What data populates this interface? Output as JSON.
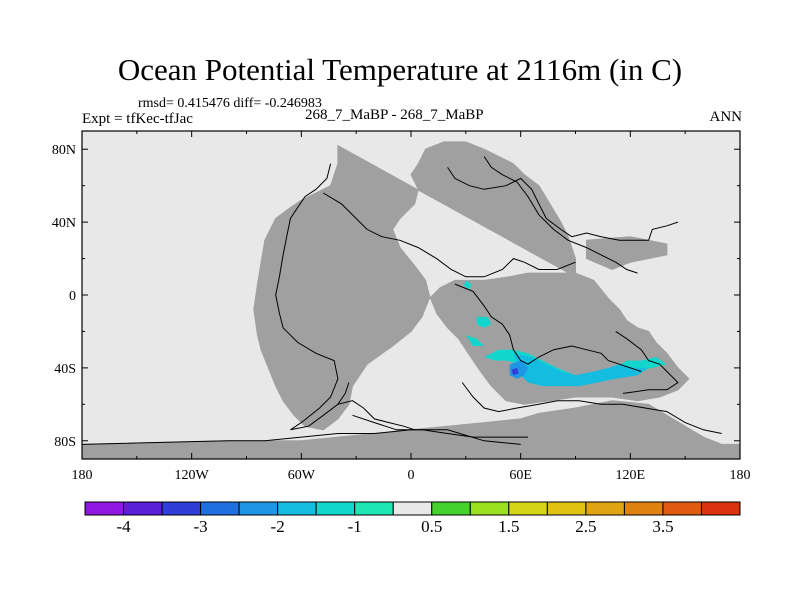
{
  "title": "Ocean Potential Temperature at 2116m (in C)",
  "stats": "rmsd= 0.415476 diff= -0.246983",
  "expt": "Expt = tfKec-tfJac",
  "case": "268_7_MaBP - 268_7_MaBP",
  "season": "ANN",
  "chart_data": {
    "type": "heatmap",
    "title": "Ocean Potential Temperature at 2116m (in C)",
    "subtitle": "268_7_MaBP - 268_7_MaBP",
    "xlim": [
      -180,
      180
    ],
    "ylim": [
      -90,
      90
    ],
    "x_ticks": [
      {
        "value": -180,
        "label": "180"
      },
      {
        "value": -120,
        "label": "120W"
      },
      {
        "value": -60,
        "label": "60W"
      },
      {
        "value": 0,
        "label": "0"
      },
      {
        "value": 60,
        "label": "60E"
      },
      {
        "value": 120,
        "label": "120E"
      },
      {
        "value": 180,
        "label": "180"
      }
    ],
    "y_ticks": [
      {
        "value": 80,
        "label": "80N"
      },
      {
        "value": 40,
        "label": "40N"
      },
      {
        "value": 0,
        "label": "0"
      },
      {
        "value": -40,
        "label": "40S"
      },
      {
        "value": -80,
        "label": "80S"
      }
    ],
    "land_color": "#a0a0a0",
    "ocean_color": "#e8e8e8",
    "colorbar": {
      "colors": [
        "#8f17e0",
        "#5a1fd8",
        "#2f3ed6",
        "#1f6fe0",
        "#1e96e6",
        "#14bde0",
        "#12d6cc",
        "#1ee6b4",
        "#e8e8e8",
        "#46d22e",
        "#9be01e",
        "#d6d618",
        "#e0c214",
        "#e0a412",
        "#e0820f",
        "#e05a0f",
        "#dc3210"
      ],
      "labels": [
        {
          "after_box": 1,
          "text": "-4"
        },
        {
          "after_box": 3,
          "text": "-3"
        },
        {
          "after_box": 5,
          "text": "-2"
        },
        {
          "after_box": 7,
          "text": "-1"
        },
        {
          "after_box": 9,
          "text": "0.5"
        },
        {
          "after_box": 11,
          "text": "1.5"
        },
        {
          "after_box": 13,
          "text": "2.5"
        },
        {
          "after_box": 15,
          "text": "3.5"
        }
      ]
    },
    "land_masses": [
      [
        [
          -180,
          -82
        ],
        [
          -180,
          -90
        ],
        [
          180,
          -90
        ],
        [
          180,
          -82
        ],
        [
          170,
          -82
        ],
        [
          160,
          -78
        ],
        [
          150,
          -72
        ],
        [
          140,
          -66
        ],
        [
          130,
          -60
        ],
        [
          110,
          -58
        ],
        [
          90,
          -62
        ],
        [
          70,
          -65
        ],
        [
          60,
          -68
        ],
        [
          40,
          -70
        ],
        [
          20,
          -72
        ],
        [
          0,
          -74
        ],
        [
          -20,
          -76
        ],
        [
          -40,
          -78
        ],
        [
          -60,
          -80
        ],
        [
          -80,
          -80
        ],
        [
          -100,
          -80
        ]
      ],
      [
        [
          -40,
          82
        ],
        [
          -40,
          72
        ],
        [
          -44,
          60
        ],
        [
          -52,
          56
        ],
        [
          -60,
          52
        ],
        [
          -66,
          48
        ],
        [
          -74,
          42
        ],
        [
          -80,
          30
        ],
        [
          -82,
          18
        ],
        [
          -84,
          6
        ],
        [
          -86,
          -8
        ],
        [
          -84,
          -22
        ],
        [
          -82,
          -30
        ],
        [
          -78,
          -40
        ],
        [
          -74,
          -50
        ],
        [
          -70,
          -58
        ],
        [
          -64,
          -66
        ],
        [
          -58,
          -72
        ],
        [
          -48,
          -74
        ],
        [
          -40,
          -68
        ],
        [
          -34,
          -60
        ],
        [
          -32,
          -50
        ],
        [
          -24,
          -38
        ],
        [
          -10,
          -28
        ],
        [
          0,
          -20
        ],
        [
          6,
          -12
        ],
        [
          10,
          -2
        ],
        [
          16,
          4
        ],
        [
          24,
          8
        ],
        [
          40,
          8
        ],
        [
          54,
          10
        ],
        [
          64,
          12
        ],
        [
          76,
          12
        ],
        [
          90,
          12
        ],
        [
          100,
          8
        ],
        [
          108,
          -2
        ],
        [
          114,
          -8
        ],
        [
          118,
          -14
        ],
        [
          124,
          -18
        ],
        [
          130,
          -20
        ],
        [
          134,
          -26
        ],
        [
          140,
          -32
        ],
        [
          146,
          -40
        ],
        [
          152,
          -46
        ],
        [
          146,
          -52
        ],
        [
          136,
          -56
        ],
        [
          124,
          -58
        ],
        [
          110,
          -56
        ],
        [
          90,
          -56
        ],
        [
          76,
          -58
        ],
        [
          62,
          -60
        ],
        [
          52,
          -58
        ],
        [
          44,
          -50
        ],
        [
          38,
          -42
        ],
        [
          34,
          -36
        ],
        [
          26,
          -24
        ],
        [
          20,
          -18
        ],
        [
          14,
          -10
        ],
        [
          10,
          0
        ],
        [
          8,
          8
        ],
        [
          2,
          16
        ],
        [
          -6,
          26
        ],
        [
          -10,
          36
        ],
        [
          -6,
          42
        ],
        [
          2,
          50
        ],
        [
          4,
          58
        ],
        [
          0,
          66
        ],
        [
          4,
          72
        ],
        [
          8,
          80
        ],
        [
          18,
          84
        ],
        [
          30,
          84
        ],
        [
          40,
          80
        ],
        [
          48,
          76
        ],
        [
          56,
          72
        ],
        [
          62,
          66
        ],
        [
          70,
          60
        ],
        [
          76,
          50
        ],
        [
          82,
          40
        ],
        [
          86,
          32
        ],
        [
          90,
          20
        ],
        [
          90,
          10
        ]
      ],
      [
        [
          96,
          30
        ],
        [
          120,
          32
        ],
        [
          140,
          28
        ],
        [
          140,
          22
        ],
        [
          120,
          18
        ],
        [
          110,
          14
        ],
        [
          96,
          20
        ]
      ]
    ],
    "coastlines": [
      [
        [
          -180,
          -82
        ],
        [
          -100,
          -80
        ],
        [
          -80,
          -80
        ],
        [
          -60,
          -78
        ],
        [
          -40,
          -76
        ],
        [
          -20,
          -76
        ],
        [
          0,
          -74
        ],
        [
          20,
          -74
        ],
        [
          40,
          -80
        ],
        [
          60,
          -82
        ]
      ],
      [
        [
          -44,
          72
        ],
        [
          -46,
          64
        ],
        [
          -52,
          58
        ],
        [
          -58,
          54
        ],
        [
          -62,
          48
        ],
        [
          -66,
          42
        ],
        [
          -68,
          32
        ],
        [
          -70,
          22
        ],
        [
          -72,
          10
        ],
        [
          -74,
          0
        ],
        [
          -72,
          -10
        ],
        [
          -70,
          -18
        ],
        [
          -62,
          -26
        ],
        [
          -52,
          -32
        ],
        [
          -42,
          -36
        ],
        [
          -40,
          -46
        ],
        [
          -44,
          -56
        ],
        [
          -50,
          -62
        ],
        [
          -60,
          -70
        ],
        [
          -66,
          -74
        ],
        [
          -56,
          -72
        ],
        [
          -48,
          -66
        ],
        [
          -40,
          -60
        ],
        [
          -36,
          -54
        ],
        [
          -34,
          -48
        ]
      ],
      [
        [
          -48,
          56
        ],
        [
          -38,
          50
        ],
        [
          -30,
          42
        ],
        [
          -24,
          36
        ],
        [
          -16,
          32
        ],
        [
          -6,
          30
        ],
        [
          4,
          26
        ],
        [
          14,
          20
        ],
        [
          22,
          14
        ],
        [
          30,
          10
        ],
        [
          40,
          10
        ],
        [
          50,
          14
        ],
        [
          56,
          20
        ],
        [
          62,
          18
        ],
        [
          70,
          14
        ],
        [
          80,
          14
        ],
        [
          90,
          18
        ]
      ],
      [
        [
          20,
          70
        ],
        [
          24,
          64
        ],
        [
          32,
          60
        ],
        [
          40,
          58
        ],
        [
          52,
          60
        ],
        [
          60,
          64
        ],
        [
          66,
          58
        ],
        [
          70,
          50
        ],
        [
          74,
          42
        ],
        [
          82,
          36
        ],
        [
          88,
          32
        ],
        [
          96,
          34
        ],
        [
          104,
          32
        ],
        [
          114,
          30
        ],
        [
          130,
          30
        ],
        [
          132,
          36
        ],
        [
          140,
          38
        ],
        [
          146,
          40
        ]
      ],
      [
        [
          40,
          76
        ],
        [
          44,
          70
        ],
        [
          50,
          66
        ],
        [
          58,
          62
        ],
        [
          64,
          54
        ],
        [
          70,
          44
        ],
        [
          78,
          36
        ],
        [
          86,
          30
        ],
        [
          96,
          26
        ],
        [
          104,
          22
        ],
        [
          112,
          18
        ],
        [
          118,
          14
        ],
        [
          124,
          12
        ]
      ],
      [
        [
          24,
          6
        ],
        [
          34,
          2
        ],
        [
          40,
          -6
        ],
        [
          44,
          -12
        ],
        [
          50,
          -16
        ],
        [
          54,
          -22
        ],
        [
          56,
          -30
        ],
        [
          60,
          -36
        ],
        [
          64,
          -38
        ],
        [
          70,
          -34
        ],
        [
          78,
          -30
        ],
        [
          88,
          -28
        ],
        [
          96,
          -30
        ],
        [
          104,
          -32
        ],
        [
          108,
          -36
        ],
        [
          114,
          -38
        ],
        [
          120,
          -40
        ],
        [
          126,
          -42
        ]
      ],
      [
        [
          -32,
          -66
        ],
        [
          -20,
          -70
        ],
        [
          -8,
          -74
        ],
        [
          6,
          -74
        ],
        [
          20,
          -76
        ],
        [
          34,
          -78
        ],
        [
          50,
          -78
        ],
        [
          64,
          -78
        ]
      ],
      [
        [
          -40,
          -60
        ],
        [
          -32,
          -58
        ],
        [
          -26,
          -62
        ],
        [
          -20,
          -68
        ],
        [
          -12,
          -70
        ],
        [
          -4,
          -72
        ],
        [
          2,
          -74
        ]
      ],
      [
        [
          112,
          -20
        ],
        [
          118,
          -24
        ],
        [
          126,
          -30
        ],
        [
          130,
          -36
        ],
        [
          136,
          -38
        ],
        [
          140,
          -42
        ],
        [
          146,
          -48
        ],
        [
          140,
          -52
        ],
        [
          130,
          -52
        ],
        [
          116,
          -54
        ]
      ],
      [
        [
          28,
          -48
        ],
        [
          34,
          -56
        ],
        [
          40,
          -62
        ],
        [
          48,
          -64
        ],
        [
          58,
          -62
        ],
        [
          70,
          -60
        ],
        [
          80,
          -58
        ],
        [
          92,
          -58
        ],
        [
          104,
          -60
        ],
        [
          116,
          -60
        ],
        [
          128,
          -62
        ],
        [
          140,
          -64
        ],
        [
          150,
          -70
        ],
        [
          160,
          -74
        ],
        [
          170,
          -76
        ]
      ]
    ],
    "anomaly_regions": [
      {
        "value": -1,
        "color": "#12d6cc",
        "polygon": [
          [
            40,
            -34
          ],
          [
            48,
            -30
          ],
          [
            56,
            -30
          ],
          [
            64,
            -32
          ],
          [
            72,
            -36
          ],
          [
            80,
            -40
          ],
          [
            90,
            -44
          ],
          [
            98,
            -44
          ],
          [
            104,
            -42
          ],
          [
            112,
            -40
          ],
          [
            118,
            -36
          ],
          [
            126,
            -36
          ],
          [
            134,
            -34
          ],
          [
            140,
            -38
          ],
          [
            132,
            -40
          ],
          [
            122,
            -42
          ],
          [
            110,
            -42
          ],
          [
            100,
            -46
          ],
          [
            90,
            -48
          ],
          [
            80,
            -46
          ],
          [
            70,
            -42
          ],
          [
            60,
            -38
          ],
          [
            52,
            -36
          ],
          [
            46,
            -36
          ]
        ]
      },
      {
        "value": -1.5,
        "color": "#14bde0",
        "polygon": [
          [
            56,
            -32
          ],
          [
            66,
            -34
          ],
          [
            74,
            -38
          ],
          [
            82,
            -42
          ],
          [
            90,
            -44
          ],
          [
            100,
            -42
          ],
          [
            108,
            -40
          ],
          [
            114,
            -38
          ],
          [
            122,
            -40
          ],
          [
            130,
            -40
          ],
          [
            124,
            -44
          ],
          [
            112,
            -46
          ],
          [
            102,
            -48
          ],
          [
            92,
            -50
          ],
          [
            82,
            -50
          ],
          [
            72,
            -50
          ],
          [
            64,
            -48
          ],
          [
            60,
            -44
          ],
          [
            58,
            -38
          ]
        ]
      },
      {
        "value": -2,
        "color": "#1e96e6",
        "polygon": [
          [
            54,
            -38
          ],
          [
            60,
            -36
          ],
          [
            64,
            -40
          ],
          [
            62,
            -44
          ],
          [
            58,
            -46
          ],
          [
            54,
            -44
          ]
        ]
      },
      {
        "value": -3,
        "color": "#2f3ed6",
        "polygon": [
          [
            55,
            -41
          ],
          [
            58,
            -40
          ],
          [
            59,
            -43
          ],
          [
            56,
            -44
          ]
        ]
      },
      {
        "value": -1,
        "color": "#12d6cc",
        "polygon": [
          [
            36,
            -12
          ],
          [
            42,
            -12
          ],
          [
            44,
            -16
          ],
          [
            40,
            -18
          ],
          [
            36,
            -16
          ]
        ]
      },
      {
        "value": -1,
        "color": "#12d6cc",
        "polygon": [
          [
            30,
            -22
          ],
          [
            36,
            -24
          ],
          [
            40,
            -28
          ],
          [
            34,
            -28
          ]
        ]
      },
      {
        "value": -1,
        "color": "#12d6cc",
        "polygon": [
          [
            30,
            8
          ],
          [
            33,
            6
          ],
          [
            32,
            3
          ],
          [
            29,
            5
          ]
        ]
      }
    ]
  }
}
